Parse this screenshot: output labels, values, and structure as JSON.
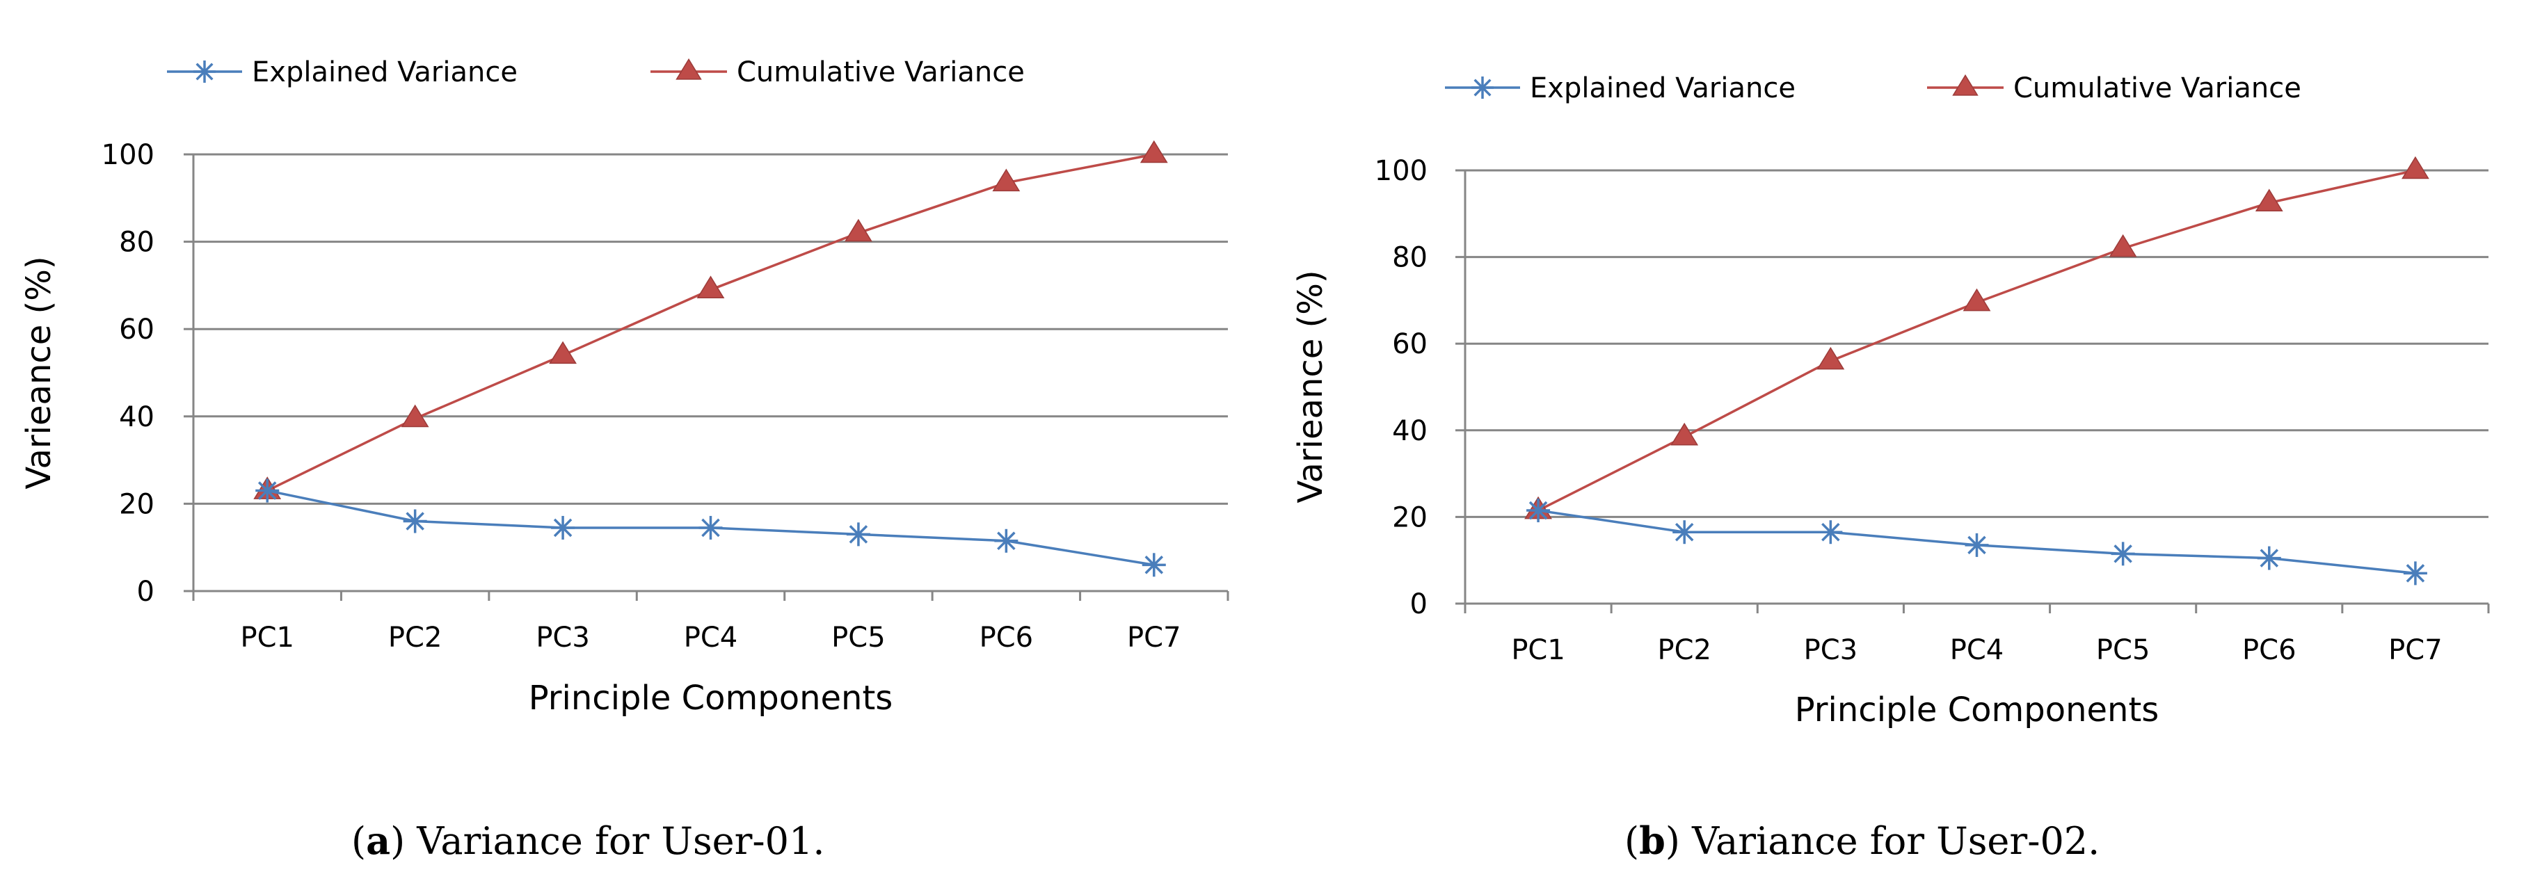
{
  "colors": {
    "explained": "#4A7EBB",
    "cumulative": "#BE4B48",
    "gridline": "#868686",
    "axis": "#868686",
    "text": "#000000"
  },
  "chart_data": [
    {
      "type": "line",
      "categories": [
        "PC1",
        "PC2",
        "PC3",
        "PC4",
        "PC5",
        "PC6",
        "PC7"
      ],
      "xlabel": "Principle Components",
      "ylabel": "Varieance (%)",
      "ylim": [
        0,
        100
      ],
      "yticks": [
        "0",
        "20",
        "40",
        "60",
        "80",
        "100"
      ],
      "grid": true,
      "legend_position": "top",
      "series": [
        {
          "name": "Explained Variance",
          "marker": "asterisk",
          "values": [
            23,
            16,
            14.5,
            14.5,
            13,
            11.5,
            6
          ]
        },
        {
          "name": "Cumulative Variance",
          "marker": "triangle",
          "values": [
            23,
            39.5,
            54,
            69,
            82,
            93.5,
            100
          ]
        }
      ],
      "caption": {
        "letter": "a",
        "text": ") Variance for User-01.",
        "open": "("
      }
    },
    {
      "type": "line",
      "categories": [
        "PC1",
        "PC2",
        "PC3",
        "PC4",
        "PC5",
        "PC6",
        "PC7"
      ],
      "xlabel": "Principle Components",
      "ylabel": "Varieance (%)",
      "ylim": [
        0,
        100
      ],
      "yticks": [
        "0",
        "20",
        "40",
        "60",
        "80",
        "100"
      ],
      "grid": true,
      "legend_position": "top",
      "series": [
        {
          "name": "Explained Variance",
          "marker": "asterisk",
          "values": [
            21.5,
            16.5,
            16.5,
            13.5,
            11.5,
            10.5,
            7
          ]
        },
        {
          "name": "Cumulative Variance",
          "marker": "triangle",
          "values": [
            21.5,
            38.5,
            56,
            69.5,
            82,
            92.5,
            100
          ]
        }
      ],
      "caption": {
        "letter": "b",
        "text": ") Variance for User-02.",
        "open": "("
      }
    }
  ]
}
